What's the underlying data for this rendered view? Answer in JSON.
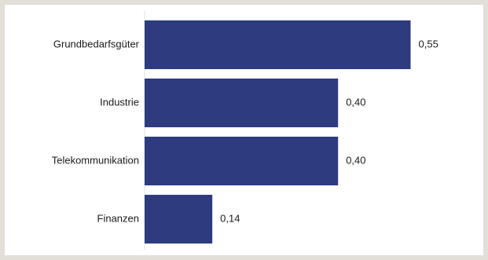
{
  "chart_data": {
    "type": "bar",
    "orientation": "horizontal",
    "categories": [
      "Grundbedarfsgüter",
      "Industrie",
      "Telekommunikation",
      "Finanzen"
    ],
    "values": [
      0.55,
      0.4,
      0.4,
      0.14
    ],
    "value_labels": [
      "0,55",
      "0,40",
      "0,40",
      "0,14"
    ],
    "xlim": [
      0,
      0.6
    ],
    "grid": false,
    "legend": "none",
    "bar_color": "#2e3b7e",
    "axis_color": "#e0e0e0",
    "title": "",
    "xlabel": "",
    "ylabel": ""
  }
}
